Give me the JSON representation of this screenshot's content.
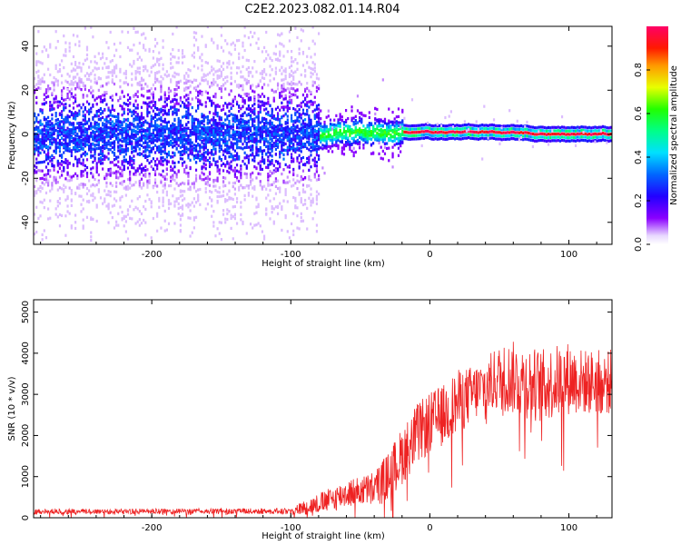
{
  "title": "C2E2.2023.082.01.14.R04",
  "colors": {
    "series": "#ee2222",
    "frame": "#000000"
  },
  "chart_data": [
    {
      "type": "heatmap",
      "xlabel": "Height of straight line (km)",
      "ylabel": "Frequency (Hz)",
      "xlim": [
        -285,
        131
      ],
      "ylim": [
        -50,
        49
      ],
      "xticks": [
        -200,
        -100,
        0,
        100
      ],
      "xtick_labels": [
        "-200",
        "-100",
        "0",
        "100"
      ],
      "yticks": [
        -40,
        -20,
        0,
        20,
        40
      ],
      "ytick_labels": [
        "-40",
        "-20",
        "0",
        "20",
        "40"
      ],
      "colorbar": {
        "label": "Normalized spectral amplitude",
        "range": [
          0,
          1
        ],
        "ticks": [
          0,
          0.2,
          0.4,
          0.6,
          0.8
        ],
        "tick_labels": [
          "0.0",
          "0.2",
          "0.4",
          "0.6",
          "0.8"
        ],
        "colormap": "hsv-like (white/violet at 0 -> blue -> cyan -> green -> yellow -> red -> magenta at 1)"
      },
      "description_of_values": [
        {
          "x_range": [
            -285,
            -80
          ],
          "freq_center": 0,
          "freq_spread": 50,
          "amplitude": "low, scattered (0-0.3)"
        },
        {
          "x_range": [
            -80,
            -20
          ],
          "freq_center": 0,
          "freq_spread": 10,
          "amplitude": "medium (0.2-0.6)"
        },
        {
          "x_range": [
            -20,
            131
          ],
          "freq_center": 0,
          "freq_spread": 3,
          "amplitude": "high (0.8-1.0) narrow line"
        }
      ]
    },
    {
      "type": "line",
      "xlabel": "Height of straight line (km)",
      "ylabel": "SNR (10 * v/v)",
      "xlim": [
        -285,
        131
      ],
      "ylim": [
        0,
        5300
      ],
      "xticks": [
        -200,
        -100,
        0,
        100
      ],
      "xtick_labels": [
        "-200",
        "-100",
        "0",
        "100"
      ],
      "yticks": [
        0,
        1000,
        2000,
        3000,
        4000,
        5000
      ],
      "ytick_labels": [
        "0",
        "1000",
        "2000",
        "3000",
        "4000",
        "5000"
      ],
      "series": [
        {
          "color": "#ee2222",
          "envelope": {
            "x": [
              -285,
              -100,
              -90,
              -80,
              -70,
              -60,
              -50,
              -40,
              -30,
              -20,
              -10,
              0,
              10,
              20,
              30,
              40,
              50,
              60,
              70,
              80,
              90,
              100,
              110,
              120,
              131
            ],
            "mean": [
              150,
              160,
              250,
              350,
              450,
              600,
              650,
              700,
              1000,
              1500,
              2000,
              2300,
              2500,
              2800,
              3000,
              3200,
              3400,
              3400,
              3300,
              3200,
              3300,
              3400,
              3300,
              3300,
              3300
            ],
            "noise": [
              80,
              90,
              180,
              250,
              300,
              350,
              350,
              450,
              600,
              700,
              750,
              750,
              750,
              800,
              700,
              700,
              800,
              900,
              900,
              900,
              900,
              900,
              800,
              800,
              800
            ]
          }
        }
      ]
    }
  ]
}
